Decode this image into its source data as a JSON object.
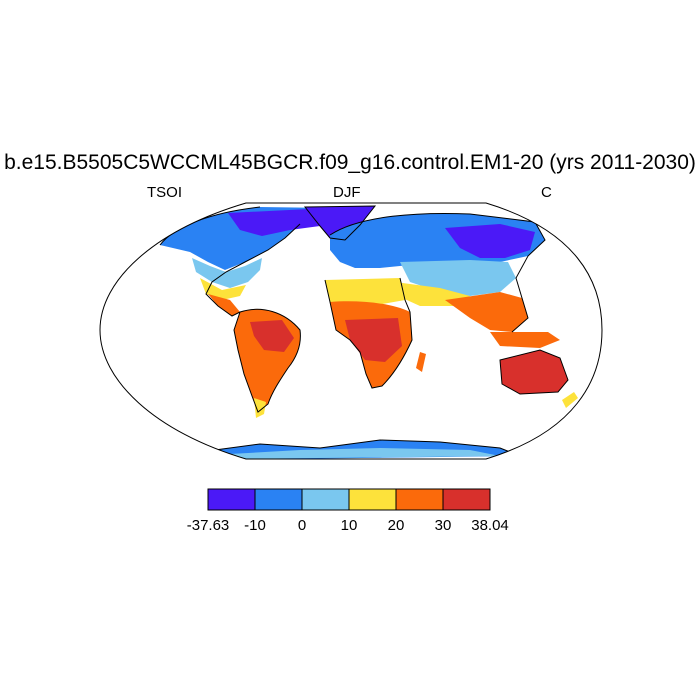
{
  "title": "b.e15.B5505C5WCCML45BGCR.f09_g16.control.EM1-20 (yrs 2011-2030)",
  "left_string": "TSOI",
  "center_string": "DJF",
  "right_string": "C",
  "projection": "Robinson",
  "colorbar": {
    "colors": [
      "#4b19f7",
      "#2a82f3",
      "#7ac7ef",
      "#fde23b",
      "#fb6a0b",
      "#d8302c"
    ],
    "labels": [
      "-37.63",
      "-10",
      "0",
      "10",
      "20",
      "30",
      "38.04"
    ]
  }
}
